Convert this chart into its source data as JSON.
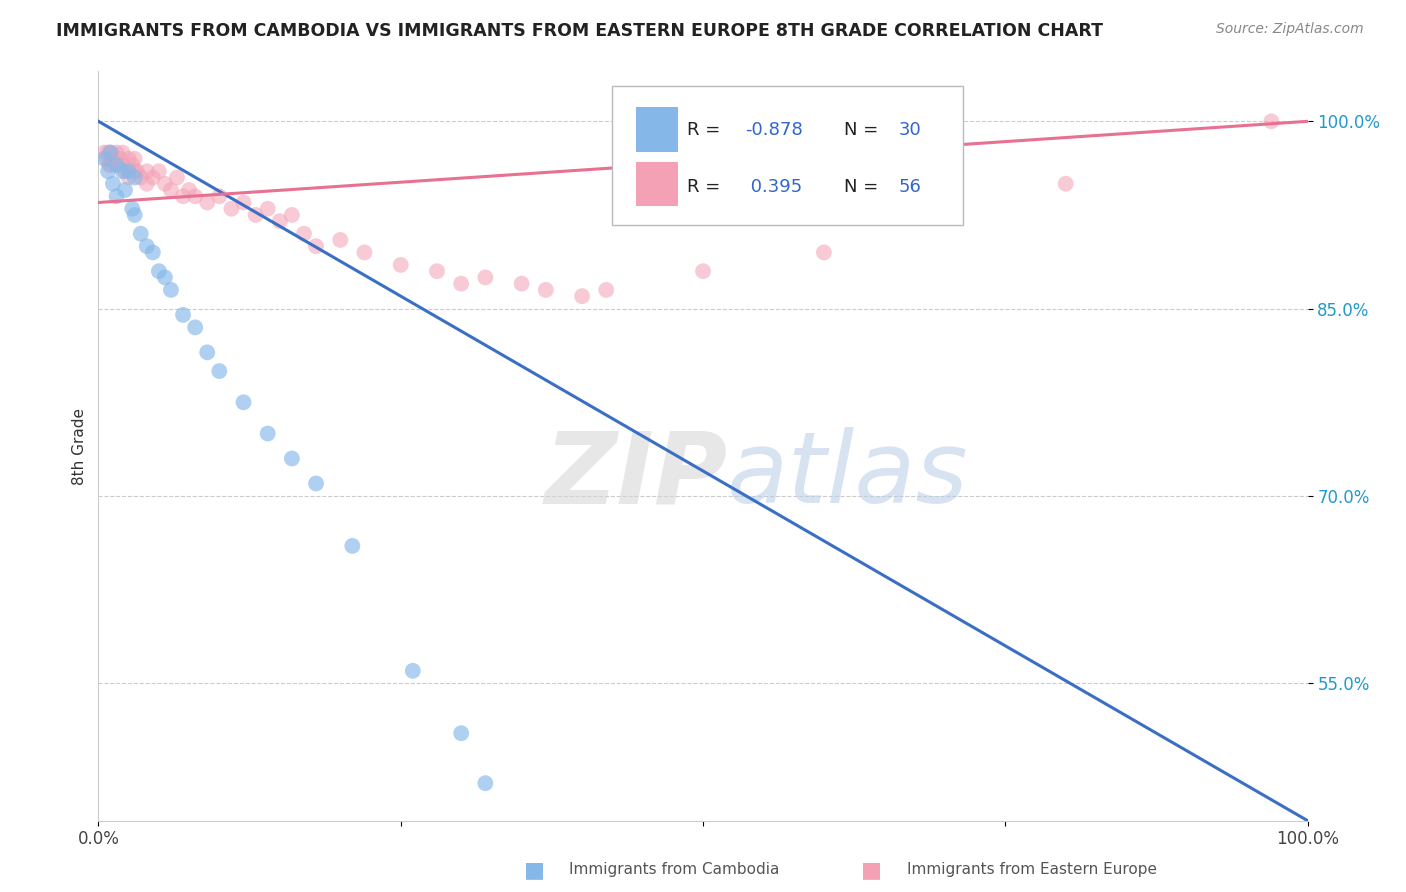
{
  "title": "IMMIGRANTS FROM CAMBODIA VS IMMIGRANTS FROM EASTERN EUROPE 8TH GRADE CORRELATION CHART",
  "source": "Source: ZipAtlas.com",
  "ylabel": "8th Grade",
  "yticks": [
    0.55,
    0.7,
    0.85,
    1.0
  ],
  "ytick_labels": [
    "55.0%",
    "70.0%",
    "85.0%",
    "100.0%"
  ],
  "xlim": [
    0.0,
    1.0
  ],
  "ylim": [
    0.44,
    1.04
  ],
  "legend_r_cambodia": "-0.878",
  "legend_n_cambodia": "30",
  "legend_r_eastern": "0.395",
  "legend_n_eastern": "56",
  "cambodia_color": "#85b8e8",
  "eastern_color": "#f4a0b5",
  "cambodia_line_color": "#3a6fc4",
  "eastern_line_color": "#e87090",
  "blue_x": [
    0.005,
    0.008,
    0.01,
    0.012,
    0.015,
    0.015,
    0.02,
    0.022,
    0.025,
    0.028,
    0.03,
    0.03,
    0.035,
    0.04,
    0.045,
    0.05,
    0.055,
    0.06,
    0.07,
    0.08,
    0.09,
    0.1,
    0.12,
    0.14,
    0.16,
    0.18,
    0.21,
    0.26,
    0.3,
    0.32
  ],
  "blue_y": [
    0.97,
    0.96,
    0.975,
    0.95,
    0.965,
    0.94,
    0.96,
    0.945,
    0.96,
    0.93,
    0.955,
    0.925,
    0.91,
    0.9,
    0.895,
    0.88,
    0.875,
    0.865,
    0.845,
    0.835,
    0.815,
    0.8,
    0.775,
    0.75,
    0.73,
    0.71,
    0.66,
    0.56,
    0.51,
    0.47
  ],
  "pink_x": [
    0.005,
    0.007,
    0.008,
    0.009,
    0.01,
    0.01,
    0.01,
    0.012,
    0.015,
    0.015,
    0.018,
    0.02,
    0.02,
    0.022,
    0.025,
    0.025,
    0.028,
    0.03,
    0.03,
    0.032,
    0.035,
    0.04,
    0.04,
    0.045,
    0.05,
    0.055,
    0.06,
    0.065,
    0.07,
    0.075,
    0.08,
    0.09,
    0.1,
    0.11,
    0.12,
    0.13,
    0.14,
    0.15,
    0.16,
    0.17,
    0.18,
    0.2,
    0.22,
    0.25,
    0.28,
    0.3,
    0.32,
    0.35,
    0.37,
    0.4,
    0.42,
    0.5,
    0.6,
    0.7,
    0.8,
    0.97
  ],
  "pink_y": [
    0.975,
    0.97,
    0.975,
    0.965,
    0.975,
    0.97,
    0.965,
    0.97,
    0.975,
    0.965,
    0.97,
    0.975,
    0.965,
    0.96,
    0.97,
    0.955,
    0.965,
    0.97,
    0.96,
    0.96,
    0.955,
    0.96,
    0.95,
    0.955,
    0.96,
    0.95,
    0.945,
    0.955,
    0.94,
    0.945,
    0.94,
    0.935,
    0.94,
    0.93,
    0.935,
    0.925,
    0.93,
    0.92,
    0.925,
    0.91,
    0.9,
    0.905,
    0.895,
    0.885,
    0.88,
    0.87,
    0.875,
    0.87,
    0.865,
    0.86,
    0.865,
    0.88,
    0.895,
    0.93,
    0.95,
    1.0
  ],
  "blue_trend_x": [
    0.0,
    1.0
  ],
  "blue_trend_y": [
    1.0,
    0.44
  ],
  "pink_trend_x": [
    0.0,
    1.0
  ],
  "pink_trend_y": [
    0.935,
    1.0
  ]
}
